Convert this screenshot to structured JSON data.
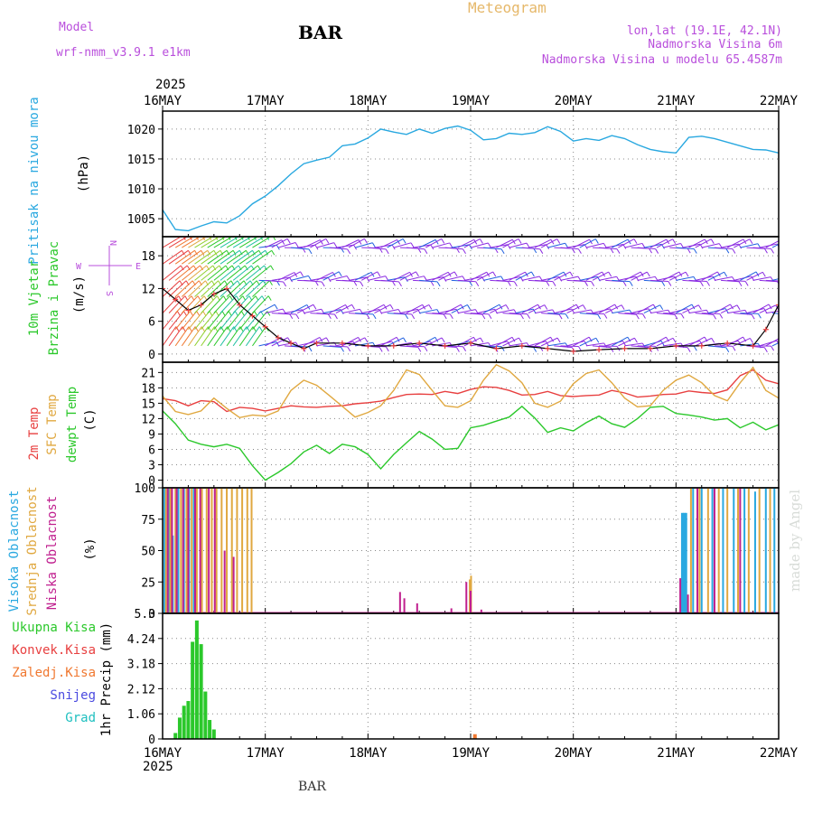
{
  "header": {
    "model_label": "Model",
    "model_name": "wrf-nmm_v3.9.1  e1km",
    "title": "BAR",
    "meteogram": "Meteogram",
    "lonlat": "lon,lat (19.1E, 42.1N)",
    "elev": "Nadmorska Visina 6m",
    "elev_model": "Nadmorska Visina u modelu 65.4587m",
    "footer": "BAR",
    "credit": "made by Angel"
  },
  "colors": {
    "pressure": "#29a8e0",
    "temp2m": "#e84040",
    "sfc": "#e0a840",
    "dew": "#2bc82b",
    "high": "#29a8e0",
    "mid": "#e0a840",
    "low": "#c0208f",
    "wind_purple": "#8b2be2",
    "wind_blue": "#2060e0"
  },
  "time_axis": {
    "top_year": "2025",
    "bottom_year": "2025",
    "labels": [
      "16MAY",
      "17MAY",
      "18MAY",
      "19MAY",
      "20MAY",
      "21MAY",
      "22MAY"
    ]
  },
  "panels": {
    "pressure": {
      "label": "Pritisak na nivou mora",
      "unit": "(hPa)"
    },
    "wind": {
      "label1": "10m Vjetar",
      "label2": "Brzina i Pravac",
      "unit": "(m/s)",
      "compass": [
        "N",
        "W",
        "E",
        "S"
      ]
    },
    "temp": {
      "label1": "2m Temp",
      "label2": "SFC Temp",
      "label3": "dewpt Temp",
      "unit": "(C)"
    },
    "cloud": {
      "label1": "Visoka Oblacnost",
      "label2": "Srednja Oblacnost",
      "label3": "Niska Oblacnost",
      "unit": "(%)"
    },
    "precip": {
      "legend": [
        "Ukupna Kisa",
        "Konvek.Kisa",
        "Zaledj.Kisa",
        "Snijeg",
        "Grad"
      ],
      "ylabel": "1hr Precip (mm)"
    }
  },
  "chart_data": [
    {
      "type": "line",
      "title": "Pritisak na nivou mora",
      "ylabel": "(hPa)",
      "xlim": [
        0,
        144
      ],
      "ylim": [
        1002,
        1023
      ],
      "yticks": [
        1005,
        1010,
        1015,
        1020
      ],
      "series": [
        {
          "name": "Pritisak",
          "x": [
            0,
            3,
            6,
            9,
            12,
            15,
            18,
            21,
            24,
            27,
            30,
            33,
            36,
            39,
            42,
            45,
            48,
            51,
            54,
            57,
            60,
            63,
            66,
            69,
            72,
            75,
            78,
            81,
            84,
            87,
            90,
            93,
            96,
            99,
            102,
            105,
            108,
            111,
            114,
            117,
            120,
            123,
            126,
            129,
            132,
            135,
            138,
            141,
            144
          ],
          "values": [
            1006.5,
            1003.2,
            1003.0,
            1003.8,
            1004.5,
            1004.3,
            1005.5,
            1007.5,
            1008.8,
            1010.5,
            1012.5,
            1014.2,
            1014.8,
            1015.3,
            1017.2,
            1017.5,
            1018.5,
            1020.0,
            1019.5,
            1019.1,
            1020.0,
            1019.3,
            1020.1,
            1020.5,
            1019.8,
            1018.2,
            1018.4,
            1019.3,
            1019.1,
            1019.4,
            1020.4,
            1019.6,
            1018.0,
            1018.4,
            1018.1,
            1018.9,
            1018.4,
            1017.4,
            1016.6,
            1016.2,
            1016.0,
            1018.6,
            1018.8,
            1018.4,
            1017.8,
            1017.2,
            1016.6,
            1016.5,
            1016.0
          ]
        }
      ]
    },
    {
      "type": "barbs",
      "title": "10m Vjetar Brzina i Pravac",
      "ylabel": "(m/s)",
      "xlim": [
        0,
        144
      ],
      "ylim": [
        -1.5,
        21.5
      ],
      "yticks": [
        0,
        6,
        12,
        18
      ],
      "series": [
        {
          "name": "speed",
          "x": [
            0,
            3,
            6,
            9,
            12,
            15,
            18,
            21,
            24,
            27,
            30,
            33,
            36,
            42,
            48,
            54,
            60,
            66,
            72,
            78,
            84,
            90,
            96,
            102,
            108,
            114,
            120,
            126,
            132,
            138,
            141,
            144
          ],
          "values": [
            12,
            10,
            8,
            9,
            11,
            12,
            9,
            7,
            5,
            3,
            2,
            1,
            2,
            2,
            1.5,
            1.5,
            2,
            1.5,
            2,
            1,
            1.5,
            1,
            0.5,
            0.8,
            1,
            1,
            1.5,
            1.5,
            2,
            1.5,
            4.5,
            9
          ]
        }
      ]
    },
    {
      "type": "line",
      "title": "2m Temp / SFC Temp / dewpt Temp",
      "ylabel": "(C)",
      "xlim": [
        0,
        144
      ],
      "ylim": [
        -1.5,
        23
      ],
      "yticks": [
        0,
        3,
        6,
        9,
        12,
        15,
        18,
        21
      ],
      "series": [
        {
          "name": "2m Temp",
          "x": [
            0,
            3,
            6,
            9,
            12,
            15,
            18,
            21,
            24,
            27,
            30,
            33,
            36,
            39,
            42,
            45,
            48,
            51,
            54,
            57,
            60,
            63,
            66,
            69,
            72,
            75,
            78,
            81,
            84,
            87,
            90,
            93,
            96,
            99,
            102,
            105,
            108,
            111,
            114,
            117,
            120,
            123,
            126,
            129,
            132,
            135,
            138,
            141,
            144
          ],
          "values": [
            15.9,
            15.5,
            14.5,
            15.5,
            15.3,
            13.4,
            14.2,
            14.0,
            13.5,
            14.0,
            14.5,
            14.3,
            14.2,
            14.4,
            14.5,
            14.9,
            15.1,
            15.4,
            16.1,
            16.7,
            16.8,
            16.7,
            17.3,
            16.9,
            17.7,
            18.2,
            18.1,
            17.5,
            16.6,
            16.7,
            17.3,
            16.5,
            16.3,
            16.5,
            16.6,
            17.5,
            17.0,
            16.2,
            16.4,
            16.7,
            16.8,
            17.4,
            17.1,
            16.9,
            17.6,
            20.4,
            21.5,
            19.5,
            18.8
          ]
        },
        {
          "name": "SFC Temp",
          "x": [
            0,
            3,
            6,
            9,
            12,
            15,
            18,
            21,
            24,
            27,
            30,
            33,
            36,
            39,
            42,
            45,
            48,
            51,
            54,
            57,
            60,
            63,
            66,
            69,
            72,
            75,
            78,
            81,
            84,
            87,
            90,
            93,
            96,
            99,
            102,
            105,
            108,
            111,
            114,
            117,
            120,
            123,
            126,
            129,
            132,
            135,
            138,
            141,
            144
          ],
          "values": [
            16.4,
            13.4,
            12.8,
            13.5,
            16.0,
            14.0,
            12.2,
            12.7,
            12.5,
            13.5,
            17.5,
            19.5,
            18.5,
            16.5,
            14.4,
            12.3,
            13.2,
            14.5,
            17.5,
            21.5,
            20.6,
            17.5,
            14.5,
            14.2,
            15.5,
            19.5,
            22.5,
            21.3,
            19.0,
            15.0,
            14.2,
            15.4,
            18.8,
            20.8,
            21.5,
            19.0,
            16.0,
            14.3,
            14.5,
            17.5,
            19.5,
            20.5,
            19.0,
            16.5,
            15.5,
            19.0,
            22.0,
            17.5,
            16.0
          ]
        },
        {
          "name": "dewpt Temp",
          "x": [
            0,
            3,
            6,
            9,
            12,
            15,
            18,
            21,
            24,
            27,
            30,
            33,
            36,
            39,
            42,
            45,
            48,
            51,
            54,
            57,
            60,
            63,
            66,
            69,
            72,
            75,
            78,
            81,
            84,
            87,
            90,
            93,
            96,
            99,
            102,
            105,
            108,
            111,
            114,
            117,
            120,
            123,
            126,
            129,
            132,
            135,
            138,
            141,
            144
          ],
          "values": [
            13.5,
            11.0,
            7.8,
            7.0,
            6.5,
            7.0,
            6.2,
            2.8,
            0,
            1.5,
            3.2,
            5.5,
            6.8,
            5.2,
            7.0,
            6.5,
            5.0,
            2.2,
            5.0,
            7.3,
            9.5,
            8.0,
            6.0,
            6.2,
            10.2,
            10.7,
            11.5,
            12.3,
            14.4,
            12.1,
            9.3,
            10.2,
            9.6,
            11.2,
            12.5,
            11.0,
            10.3,
            12.0,
            14.2,
            14.4,
            13.0,
            12.7,
            12.3,
            11.7,
            12.0,
            10.2,
            11.3,
            9.8,
            10.8
          ]
        }
      ]
    },
    {
      "type": "bar",
      "title": "Visoka / Srednja / Niska Oblacnost",
      "ylabel": "(%)",
      "xlim": [
        0,
        144
      ],
      "ylim": [
        0,
        100
      ],
      "yticks": [
        0,
        25,
        50,
        75,
        100
      ],
      "series": [
        {
          "name": "Visoka Oblacnost",
          "x": [
            0.4,
            1.5,
            2.4,
            3.7,
            5.0,
            6.2,
            7.3,
            121.5,
            121.9,
            122.3,
            124.0,
            126.0,
            128.5,
            131.0,
            133.5,
            136.0,
            138.5,
            141.0,
            143.0
          ],
          "values": [
            100,
            100,
            62,
            100,
            100,
            100,
            100,
            80,
            80,
            80,
            100,
            100,
            100,
            100,
            100,
            100,
            97,
            100,
            100
          ]
        },
        {
          "name": "Srednja Oblacnost",
          "x": [
            0.8,
            1.8,
            3.0,
            4.3,
            5.6,
            6.8,
            8.0,
            9.2,
            10.3,
            11.5,
            12.6,
            13.8,
            15.0,
            16.2,
            17.4,
            18.6,
            19.8,
            20.8,
            71.8,
            72.1,
            123.5,
            125.5,
            127.5,
            130.0,
            132.0,
            134.5,
            137.0,
            139.5,
            142.0
          ],
          "values": [
            100,
            100,
            100,
            100,
            100,
            100,
            100,
            100,
            100,
            100,
            100,
            100,
            100,
            100,
            100,
            100,
            100,
            100,
            27,
            30,
            100,
            100,
            100,
            100,
            100,
            100,
            100,
            100,
            100
          ]
        },
        {
          "name": "Niska Oblacnost",
          "x": [
            1.2,
            2.2,
            3.3,
            4.8,
            6.0,
            7.6,
            8.8,
            10.8,
            12.2,
            14.5,
            16.6,
            55.5,
            56.5,
            59.5,
            67.5,
            71.0,
            72.0,
            74.5,
            121.0,
            122.8,
            125.0,
            129.0,
            135.0
          ],
          "values": [
            100,
            100,
            100,
            100,
            100,
            100,
            100,
            100,
            100,
            50,
            45,
            17,
            12,
            8,
            4,
            25,
            18,
            3,
            28,
            15,
            100,
            100,
            100
          ]
        }
      ]
    },
    {
      "type": "bar",
      "title": "1hr Precip",
      "ylabel": "1hr Precip (mm)",
      "xlim": [
        0,
        144
      ],
      "ylim": [
        0,
        5.3
      ],
      "yticks": [
        0,
        1.06,
        2.12,
        3.18,
        4.24,
        5.3
      ],
      "series": [
        {
          "name": "Ukupna Kisa",
          "x": [
            3,
            4,
            5,
            6,
            7,
            8,
            9,
            10,
            11,
            12,
            73
          ],
          "values": [
            0.25,
            0.9,
            1.4,
            1.6,
            4.1,
            5.0,
            4.0,
            2.0,
            0.8,
            0.4,
            0.05
          ]
        },
        {
          "name": "Zaledj.Kisa",
          "x": [
            73
          ],
          "values": [
            0.2
          ]
        }
      ]
    }
  ]
}
